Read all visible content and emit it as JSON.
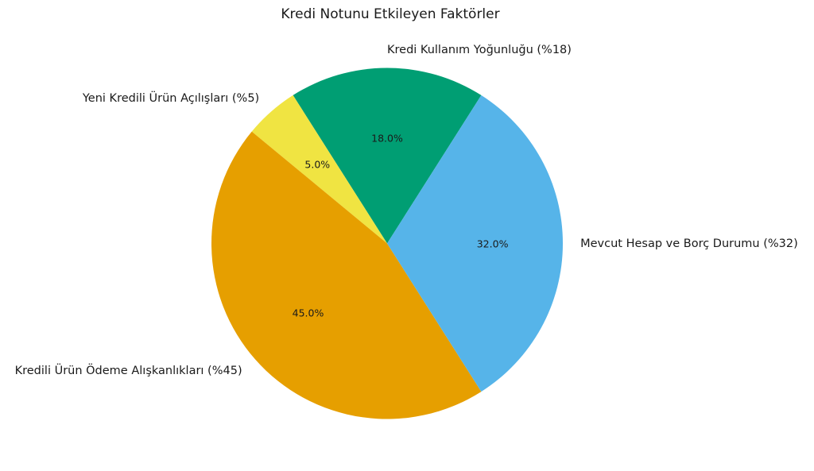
{
  "title": "Kredi Notunu Etkileyen Faktörler",
  "chart_data": {
    "type": "pie",
    "title": "Kredi Notunu Etkileyen Faktörler",
    "background_color": "#ffffff",
    "text_color": "#1a1a1a",
    "legend": "none",
    "start_angle_deg": 57.6,
    "direction": "counterclockwise",
    "slices": [
      {
        "label": "Kredi Kullanım Yoğunluğu (%18)",
        "value": 18,
        "pct_label": "18.0%",
        "color": "#009E73"
      },
      {
        "label": "Yeni Kredili Ürün Açılışları (%5)",
        "value": 5,
        "pct_label": "5.0%",
        "color": "#F0E442"
      },
      {
        "label": "Kredili Ürün Ödeme Alışkanlıkları (%45)",
        "value": 45,
        "pct_label": "45.0%",
        "color": "#E69F00"
      },
      {
        "label": "Mevcut Hesap ve Borç Durumu (%32)",
        "value": 32,
        "pct_label": "32.0%",
        "color": "#56B4E9"
      }
    ]
  }
}
